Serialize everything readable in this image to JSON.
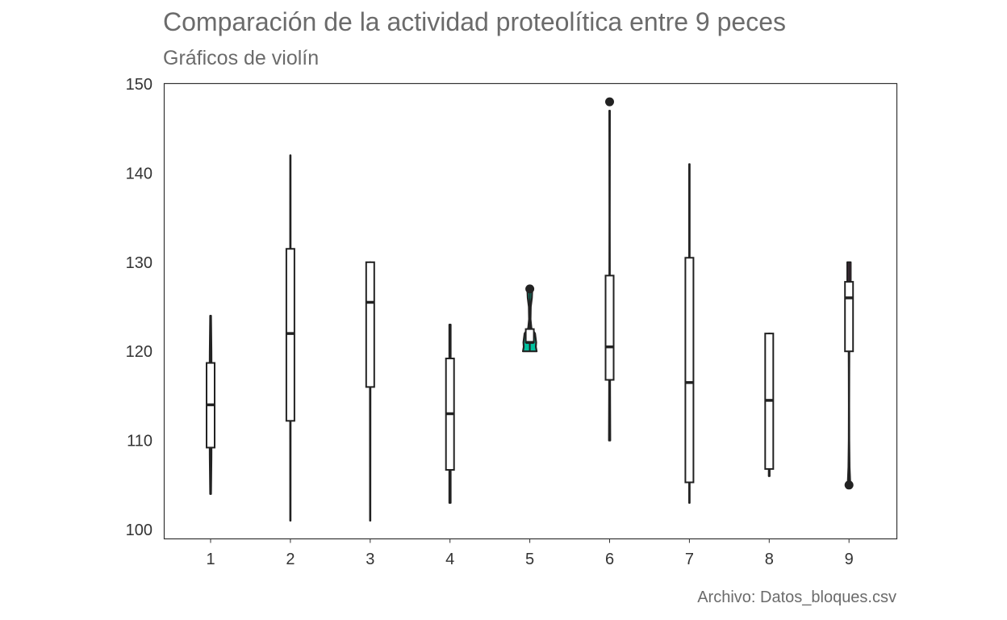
{
  "title": "Comparación de la actividad proteolítica entre 9 peces",
  "subtitle": "Gráficos de violín",
  "caption": "Archivo: Datos_bloques.csv",
  "chart_data": {
    "type": "violin",
    "title": "Comparación de la actividad proteolítica entre 9 peces",
    "subtitle": "Gráficos de violín",
    "xlabel": "",
    "ylabel": "",
    "ylim": [
      99,
      150
    ],
    "yticks": [
      100,
      110,
      120,
      130,
      140,
      150
    ],
    "categories": [
      "1",
      "2",
      "3",
      "4",
      "5",
      "6",
      "7",
      "8",
      "9"
    ],
    "grid": false,
    "legend": "none",
    "groups": [
      {
        "category": "1",
        "color": "#F8766D",
        "min": 104,
        "max": 124,
        "q1": 109.2,
        "median": 114,
        "q3": 118.7,
        "outliers": [],
        "shape": [
          [
            104,
            0.5
          ],
          [
            108,
            1
          ],
          [
            114,
            1.3
          ],
          [
            120,
            1
          ],
          [
            124,
            0.5
          ]
        ]
      },
      {
        "category": "2",
        "color": "#D39200",
        "min": 101,
        "max": 142,
        "q1": 112.2,
        "median": 122,
        "q3": 131.5,
        "outliers": [],
        "shape": [
          [
            101,
            0.2
          ],
          [
            120,
            0.3
          ],
          [
            142,
            0.2
          ]
        ]
      },
      {
        "category": "3",
        "color": "#93AA00",
        "min": 101,
        "max": 130,
        "q1": 116,
        "median": 125.5,
        "q3": 130,
        "outliers": [],
        "shape": [
          [
            101,
            0.2
          ],
          [
            116,
            0.3
          ],
          [
            130,
            0.3
          ]
        ]
      },
      {
        "category": "4",
        "color": "#00BA38",
        "min": 103,
        "max": 123,
        "q1": 106.7,
        "median": 113,
        "q3": 119.2,
        "outliers": [],
        "shape": [
          [
            103,
            0.8
          ],
          [
            113,
            0.8
          ],
          [
            123,
            0.8
          ]
        ]
      },
      {
        "category": "5",
        "color": "#00C19F",
        "min": 120,
        "max": 127,
        "q1": 121,
        "median": 121,
        "q3": 122.5,
        "outliers": [
          127
        ],
        "shape": [
          [
            120,
            8.5
          ],
          [
            120.5,
            7.5
          ],
          [
            121,
            7.9
          ],
          [
            122,
            6.5
          ],
          [
            122.6,
            2
          ],
          [
            123.6,
            0.9
          ],
          [
            125,
            1.2
          ],
          [
            126,
            2.6
          ],
          [
            127,
            3.1
          ]
        ]
      },
      {
        "category": "6",
        "color": "#00B9E3",
        "min": 110,
        "max": 147,
        "q1": 116.8,
        "median": 120.5,
        "q3": 128.5,
        "outliers": [
          148
        ],
        "shape": [
          [
            110,
            0.8
          ],
          [
            115,
            0.6
          ],
          [
            125,
            0.35
          ],
          [
            135,
            0.2
          ],
          [
            147,
            0.35
          ]
        ]
      },
      {
        "category": "7",
        "color": "#619CFF",
        "min": 103,
        "max": 141,
        "q1": 105.3,
        "median": 116.5,
        "q3": 130.5,
        "outliers": [],
        "shape": [
          [
            103,
            0.3
          ],
          [
            120,
            0.3
          ],
          [
            141,
            0.3
          ]
        ]
      },
      {
        "category": "8",
        "color": "#DB72FB",
        "min": 106,
        "max": 122,
        "q1": 106.8,
        "median": 114.5,
        "q3": 122,
        "outliers": [],
        "shape": [
          [
            106,
            0.5
          ],
          [
            110,
            0.5
          ],
          [
            122,
            0.5
          ]
        ]
      },
      {
        "category": "9",
        "color": "#FF61C3",
        "min": 105,
        "max": 130,
        "q1": 120,
        "median": 126,
        "q3": 127.8,
        "outliers": [
          105
        ],
        "shape": [
          [
            105,
            1.6
          ],
          [
            107,
            0.7
          ],
          [
            110,
            0.3
          ],
          [
            114,
            0.2
          ],
          [
            118,
            0.3
          ],
          [
            121,
            0.45
          ],
          [
            124,
            0.8
          ],
          [
            126,
            1.3
          ],
          [
            128,
            2.1
          ],
          [
            130,
            2.1
          ]
        ]
      }
    ]
  }
}
